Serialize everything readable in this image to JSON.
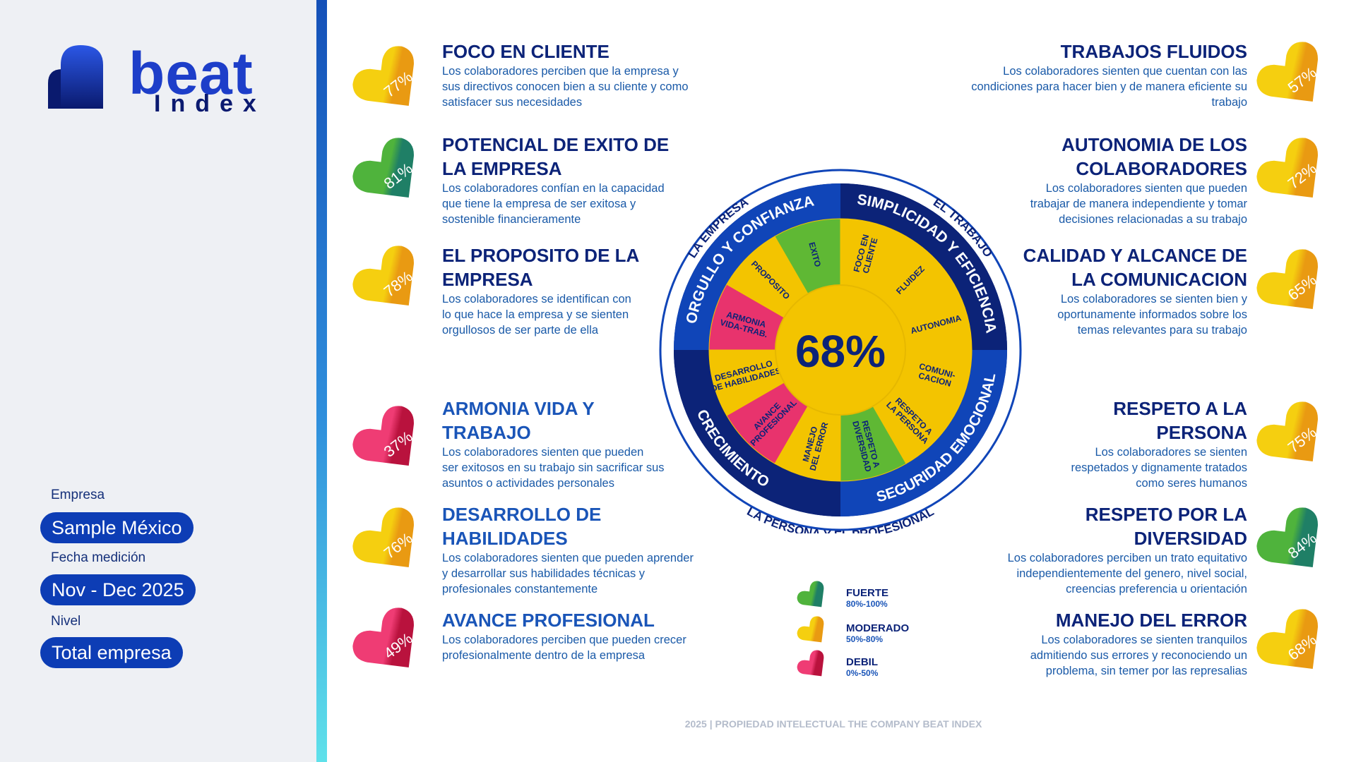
{
  "brand": {
    "name": "beat",
    "sub": "Index"
  },
  "sidebar": {
    "company_label": "Empresa",
    "company_value": "Sample México",
    "date_label": "Fecha medición",
    "date_value": "Nov - Dec 2025",
    "level_label": "Nivel",
    "level_value": "Total empresa"
  },
  "colors": {
    "strong": "#2d9a58",
    "moderate": "#f3c400",
    "weak": "#e0245e",
    "navy": "#0c2378",
    "blue": "#1045b8"
  },
  "metrics_left": [
    {
      "title_lines": [
        "FOCO  EN CLIENTE"
      ],
      "desc_lines": [
        "Los colaboradores perciben que la empresa y",
        "sus directivos conocen bien a su cliente y como",
        "satisfacer sus necesidades"
      ],
      "pct": "77%",
      "level": "moderate"
    },
    {
      "title_lines": [
        "POTENCIAL DE EXITO DE",
        "LA EMPRESA"
      ],
      "desc_lines": [
        "Los colaboradores confían en la capacidad",
        "que tiene la empresa de ser exitosa y",
        "sostenible financieramente"
      ],
      "pct": "81%",
      "level": "strong"
    },
    {
      "title_lines": [
        "EL PROPOSITO DE LA",
        "EMPRESA"
      ],
      "desc_lines": [
        "Los colaboradores se identifican con",
        "lo que hace la empresa y se sienten",
        "orgullosos de ser parte de ella"
      ],
      "pct": "78%",
      "level": "moderate"
    },
    {
      "title_lines": [
        "ARMONIA VIDA Y",
        "TRABAJO"
      ],
      "desc_lines": [
        "Los colaboradores sienten que pueden",
        "ser exitosos en su trabajo sin sacrificar sus",
        "asuntos o actividades personales"
      ],
      "pct": "37%",
      "level": "weak"
    },
    {
      "title_lines": [
        "DESARROLLO DE",
        "HABILIDADES"
      ],
      "desc_lines": [
        "Los colaboradores sienten que pueden aprender",
        "y desarrollar sus habilidades técnicas y",
        "profesionales constantemente"
      ],
      "pct": "76%",
      "level": "moderate"
    },
    {
      "title_lines": [
        "AVANCE PROFESIONAL"
      ],
      "desc_lines": [
        "Los colaboradores perciben que pueden crecer",
        "profesionalmente dentro de la empresa"
      ],
      "pct": "49%",
      "level": "weak"
    }
  ],
  "metrics_right": [
    {
      "title_lines": [
        "TRABAJOS FLUIDOS"
      ],
      "desc_lines": [
        "Los colaboradores sienten que cuentan con las",
        "condiciones para hacer bien y de manera eficiente su",
        "trabajo"
      ],
      "pct": "57%",
      "level": "moderate"
    },
    {
      "title_lines": [
        "AUTONOMIA DE LOS",
        "COLABORADORES"
      ],
      "desc_lines": [
        "Los colaboradores sienten que pueden",
        "trabajar de manera independiente y tomar",
        "decisiones relacionadas a su trabajo"
      ],
      "pct": "72%",
      "level": "moderate"
    },
    {
      "title_lines": [
        "CALIDAD Y ALCANCE DE",
        "LA COMUNICACION"
      ],
      "desc_lines": [
        "Los colaboradores se sienten bien y",
        "oportunamente informados sobre los",
        "temas relevantes para su trabajo"
      ],
      "pct": "65%",
      "level": "moderate"
    },
    {
      "title_lines": [
        "RESPETO A LA",
        "PERSONA"
      ],
      "desc_lines": [
        "Los colaboradores se sienten",
        "respetados y dignamente tratados",
        "como seres humanos"
      ],
      "pct": "75%",
      "level": "moderate"
    },
    {
      "title_lines": [
        "RESPETO POR LA",
        "DIVERSIDAD"
      ],
      "desc_lines": [
        "Los colaboradores perciben un trato equitativo",
        "independientemente  del genero, nivel social,",
        "creencias preferencia u orientación"
      ],
      "pct": "84%",
      "level": "strong"
    },
    {
      "title_lines": [
        "MANEJO DEL ERROR"
      ],
      "desc_lines": [
        "Los colaboradores se sienten tranquilos",
        "admitiendo sus errores y reconociendo un",
        "problema, sin temer por las represalias"
      ],
      "pct": "68%",
      "level": "moderate"
    }
  ],
  "wheel": {
    "center": "68%",
    "outer_labels": [
      "LA EMPRESA",
      "EL TRABAJO",
      "LA PERSONA Y EL PROFESIONAL"
    ],
    "quadrants": [
      "ORGULLO Y CONFIANZA",
      "SIMPLICIDAD Y EFICIENCIA",
      "SEGURIDAD EMOCIONAL",
      "CRECIMIENTO"
    ],
    "segments": [
      {
        "lines": [
          "FOCO EN",
          "CLIENTE"
        ],
        "level": "moderate"
      },
      {
        "lines": [
          "FLUIDEZ"
        ],
        "level": "moderate"
      },
      {
        "lines": [
          "AUTONOMIA"
        ],
        "level": "moderate"
      },
      {
        "lines": [
          "COMUNI-",
          "CACION"
        ],
        "level": "moderate"
      },
      {
        "lines": [
          "RESPETO A",
          "LA PERSONA"
        ],
        "level": "moderate"
      },
      {
        "lines": [
          "RESPETO A",
          "DIVERSIDAD"
        ],
        "level": "strong"
      },
      {
        "lines": [
          "MANEJO",
          "DEL ERROR"
        ],
        "level": "moderate"
      },
      {
        "lines": [
          "AVANCE",
          "PROFESIONAL"
        ],
        "level": "weak"
      },
      {
        "lines": [
          "DESARROLLO",
          "DE HABILIDADES"
        ],
        "level": "moderate"
      },
      {
        "lines": [
          "ARMONIA",
          "VIDA-TRAB."
        ],
        "level": "weak"
      },
      {
        "lines": [
          "PROPOSITO"
        ],
        "level": "moderate"
      },
      {
        "lines": [
          "EXITO"
        ],
        "level": "strong"
      }
    ]
  },
  "legend": [
    {
      "label": "FUERTE",
      "range": "80%-100%",
      "level": "strong"
    },
    {
      "label": "MODERADO",
      "range": "50%-80%",
      "level": "moderate"
    },
    {
      "label": "DEBIL",
      "range": "0%-50%",
      "level": "weak"
    }
  ],
  "footer": "2025 | PROPIEDAD INTELECTUAL THE COMPANY BEAT INDEX"
}
